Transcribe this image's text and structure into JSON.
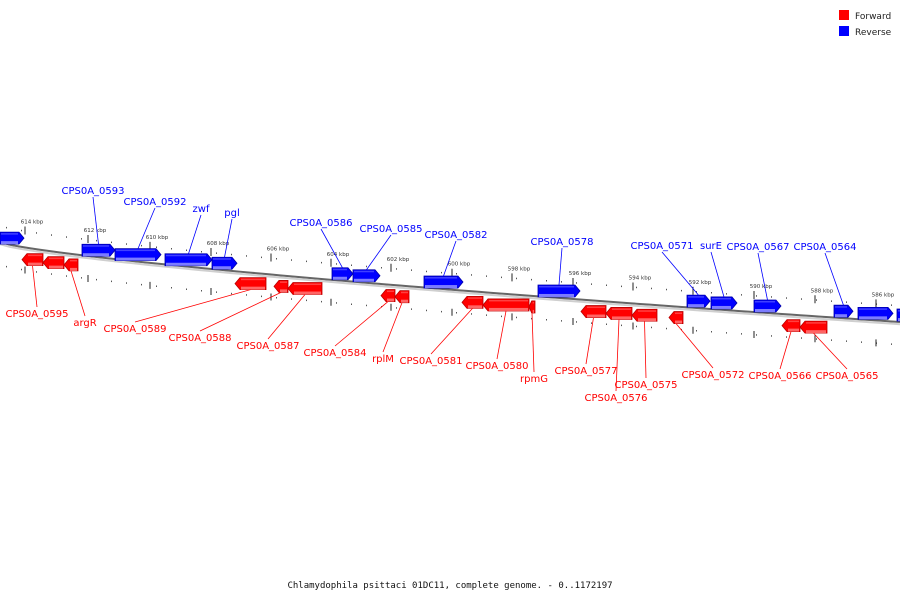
{
  "colors": {
    "forward": "#ff0000",
    "forward_dark": "#b80000",
    "forward_light": "#ff7070",
    "reverse": "#0000ff",
    "reverse_dark": "#0000a8",
    "reverse_light": "#8a8aff",
    "backbone": "#8c8c8c"
  },
  "legend": {
    "forward": "Forward",
    "reverse": "Reverse"
  },
  "caption": "Chlamydophila psittaci 01DC11, complete genome. - 0..1172197",
  "kbp_ticks": [
    "614 kbp",
    "612 kbp",
    "610 kbp",
    "608 kbp",
    "606 kbp",
    "604 kbp",
    "602 kbp",
    "600 kbp",
    "598 kbp",
    "596 kbp",
    "594 kbp",
    "592 kbp",
    "590 kbp",
    "588 kbp",
    "586 kbp"
  ],
  "reverse_genes": [
    {
      "label": ""
    },
    {
      "label": "CPS0A_0593"
    },
    {
      "label": "CPS0A_0592"
    },
    {
      "label": "zwf"
    },
    {
      "label": "pgl"
    },
    {
      "label": "CPS0A_0586"
    },
    {
      "label": "CPS0A_0585"
    },
    {
      "label": "CPS0A_0582"
    },
    {
      "label": "CPS0A_0578"
    },
    {
      "label": "CPS0A_0571"
    },
    {
      "label": "surE"
    },
    {
      "label": "CPS0A_0567"
    },
    {
      "label": "CPS0A_0564"
    },
    {
      "label": ""
    },
    {
      "label": ""
    }
  ],
  "forward_genes": [
    {
      "label": "CPS0A_0595"
    },
    {
      "label": ""
    },
    {
      "label": "argR"
    },
    {
      "label": "CPS0A_0589"
    },
    {
      "label": "CPS0A_0588"
    },
    {
      "label": "CPS0A_0587"
    },
    {
      "label": "CPS0A_0584"
    },
    {
      "label": "rplM"
    },
    {
      "label": "CPS0A_0581"
    },
    {
      "label": "CPS0A_0580"
    },
    {
      "label": "rpmG"
    },
    {
      "label": "CPS0A_0577"
    },
    {
      "label": "CPS0A_0576"
    },
    {
      "label": "CPS0A_0575"
    },
    {
      "label": "CPS0A_0572"
    },
    {
      "label": "CPS0A_0566"
    },
    {
      "label": "CPS0A_0565"
    }
  ]
}
